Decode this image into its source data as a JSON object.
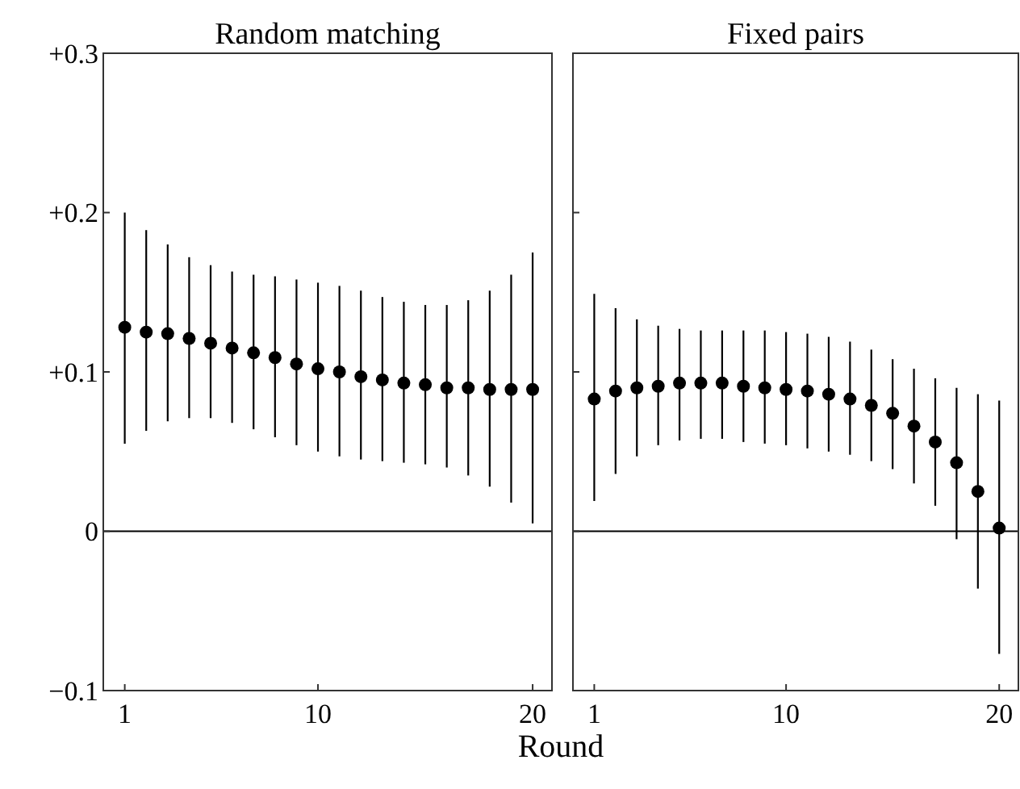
{
  "chart_data": [
    {
      "type": "scatter",
      "title": "Random matching",
      "xlabel": "Round",
      "marker": "circle",
      "grid": false,
      "x": [
        1,
        2,
        3,
        4,
        5,
        6,
        7,
        8,
        9,
        10,
        11,
        12,
        13,
        14,
        15,
        16,
        17,
        18,
        19,
        20
      ],
      "xlim": [
        0,
        20.9
      ],
      "xticks": [
        1,
        10,
        20
      ],
      "ylim": [
        -0.1,
        0.3
      ],
      "yticks": [
        {
          "value": -0.1,
          "label": "−0.1"
        },
        0,
        {
          "value": 0.1,
          "label": "+0.1"
        },
        {
          "value": 0.2,
          "label": "+0.2"
        },
        {
          "value": 0.3,
          "label": "+0.3"
        }
      ],
      "ref_lines": [
        {
          "axis": "y",
          "value": 0,
          "color": "#000000"
        }
      ],
      "series": [
        {
          "color": "#000000",
          "values": [
            0.128,
            0.125,
            0.124,
            0.121,
            0.118,
            0.115,
            0.112,
            0.109,
            0.105,
            0.102,
            0.1,
            0.097,
            0.095,
            0.093,
            0.092,
            0.09,
            0.09,
            0.089,
            0.089,
            0.089
          ],
          "errors": [
            [
              0.055,
              0.2
            ],
            [
              0.063,
              0.189
            ],
            [
              0.069,
              0.18
            ],
            [
              0.071,
              0.172
            ],
            [
              0.071,
              0.167
            ],
            [
              0.068,
              0.163
            ],
            [
              0.064,
              0.161
            ],
            [
              0.059,
              0.16
            ],
            [
              0.054,
              0.158
            ],
            [
              0.05,
              0.156
            ],
            [
              0.047,
              0.154
            ],
            [
              0.045,
              0.151
            ],
            [
              0.044,
              0.147
            ],
            [
              0.043,
              0.144
            ],
            [
              0.042,
              0.142
            ],
            [
              0.04,
              0.142
            ],
            [
              0.035,
              0.145
            ],
            [
              0.028,
              0.151
            ],
            [
              0.018,
              0.161
            ],
            [
              0.005,
              0.175
            ]
          ]
        }
      ]
    },
    {
      "type": "scatter",
      "title": "Fixed pairs",
      "marker": "circle",
      "grid": false,
      "tick_labels": "x",
      "x": [
        1,
        2,
        3,
        4,
        5,
        6,
        7,
        8,
        9,
        10,
        11,
        12,
        13,
        14,
        15,
        16,
        17,
        18,
        19,
        20
      ],
      "xlim": [
        0,
        20.9
      ],
      "xticks": [
        1,
        10,
        20
      ],
      "ylim": [
        -0.1,
        0.3
      ],
      "yticks": [
        {
          "value": -0.1,
          "label": null
        },
        {
          "value": 0,
          "label": null
        },
        {
          "value": 0.1,
          "label": null
        },
        {
          "value": 0.2,
          "label": null
        },
        {
          "value": 0.3,
          "label": null
        }
      ],
      "ref_lines": [
        {
          "axis": "y",
          "value": 0,
          "color": "#000000"
        }
      ],
      "series": [
        {
          "color": "#000000",
          "values": [
            0.083,
            0.088,
            0.09,
            0.091,
            0.093,
            0.093,
            0.093,
            0.091,
            0.09,
            0.089,
            0.088,
            0.086,
            0.083,
            0.079,
            0.074,
            0.066,
            0.056,
            0.043,
            0.025,
            0.002
          ],
          "errors": [
            [
              0.019,
              0.149
            ],
            [
              0.036,
              0.14
            ],
            [
              0.047,
              0.133
            ],
            [
              0.054,
              0.129
            ],
            [
              0.057,
              0.127
            ],
            [
              0.058,
              0.126
            ],
            [
              0.058,
              0.126
            ],
            [
              0.056,
              0.126
            ],
            [
              0.055,
              0.126
            ],
            [
              0.054,
              0.125
            ],
            [
              0.052,
              0.124
            ],
            [
              0.05,
              0.122
            ],
            [
              0.048,
              0.119
            ],
            [
              0.044,
              0.114
            ],
            [
              0.039,
              0.108
            ],
            [
              0.03,
              0.102
            ],
            [
              0.016,
              0.096
            ],
            [
              -0.005,
              0.09
            ],
            [
              -0.036,
              0.086
            ],
            [
              -0.077,
              0.082
            ]
          ]
        }
      ]
    }
  ]
}
